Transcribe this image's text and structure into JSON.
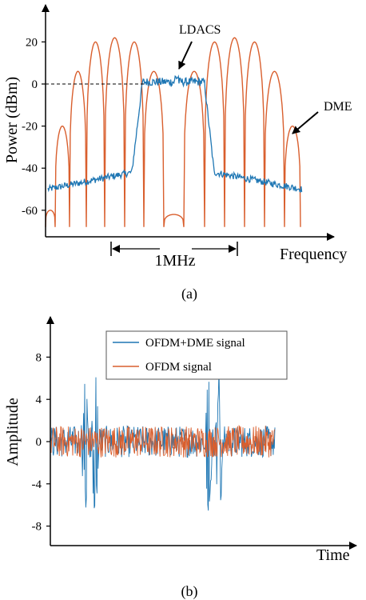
{
  "chart_data": [
    {
      "type": "line",
      "panel_label": "(a)",
      "ylabel": "Power (dBm)",
      "xlabel": "Frequency",
      "ylim": [
        -70,
        25
      ],
      "yticks": [
        20,
        0,
        -20,
        -40,
        -60
      ],
      "reference_level_dbm": 0,
      "bandwidth_label": "1MHz",
      "annotations": [
        "LDACS",
        "DME"
      ],
      "series": [
        {
          "label_text": "LDACS",
          "color": "#1f77b4",
          "floor_dbm": -50,
          "passband_dbm": 1,
          "passband_peak_dbm": 4
        },
        {
          "label_text": "DME",
          "color": "#d95f2e",
          "lobe_peaks_dbm": [
            -60,
            -20,
            6,
            20,
            22,
            20,
            6,
            -20,
            -60
          ],
          "center_notch_dbm": -70
        }
      ]
    },
    {
      "type": "line",
      "panel_label": "(b)",
      "ylabel": "Amplitude",
      "xlabel": "Time",
      "ylim": [
        -9,
        10
      ],
      "yticks": [
        8,
        4,
        0,
        -4,
        -8
      ],
      "legend_position": "top",
      "series": [
        {
          "name": "OFDM+DME signal",
          "color": "#1f77b4",
          "noise_amplitude": 1.5,
          "pulse_peaks": [
            6.5,
            8.8,
            -7.5,
            -7.3,
            6,
            6.4,
            -7.2,
            -8.2
          ]
        },
        {
          "name": "OFDM signal",
          "color": "#d95f2e",
          "noise_amplitude": 1.5
        }
      ]
    }
  ],
  "colors": {
    "ldacs_blue": "#1f77b4",
    "dme_orange": "#d95f2e",
    "axis": "#000000"
  }
}
